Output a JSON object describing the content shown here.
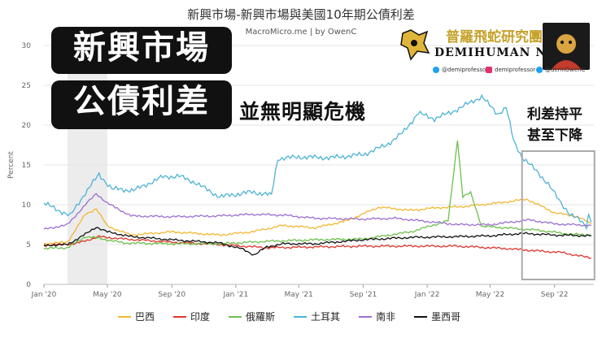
{
  "title": "新興市場-新興市場與美國10年期公債利差",
  "subtitle": "MacroMicro.me | by OwenC",
  "overlay": {
    "line1": "新興市場",
    "line2": "公債利差",
    "line3": "並無明顯危機",
    "note1": "利差持平",
    "note2": "甚至下降"
  },
  "logo": {
    "cn": "普羅飛蛇研究團",
    "en": "DEMIHUMAN NFT",
    "social1": "@demiprofessor",
    "social2": "demiprofessor",
    "social3": "@demiOwenC"
  },
  "colors": {
    "巴西": "#f2b731",
    "印度": "#e0342b",
    "俄羅斯": "#6cc04a",
    "土耳其": "#4db3d6",
    "南非": "#9b6fd1",
    "墨西哥": "#111111"
  },
  "chart_data": {
    "type": "line",
    "ylabel": "Percent",
    "ylim": [
      0,
      30
    ],
    "yticks": [
      0,
      5,
      10,
      15,
      20,
      25,
      30
    ],
    "xlim": [
      "2020-01-01",
      "2022-11-15"
    ],
    "xticks": [
      "Jan '20",
      "May '20",
      "Sep '20",
      "Jan '21",
      "May '21",
      "Sep '21",
      "Jan '22",
      "May '22",
      "Sep '22"
    ],
    "shaded_period": [
      "2020-02-15",
      "2020-05-01"
    ],
    "highlight_box": [
      "2022-07-01",
      "2022-11-10"
    ],
    "series": [
      {
        "name": "巴西",
        "color": "#f2b731",
        "points": [
          [
            "2020-01-01",
            5.1
          ],
          [
            "2020-02-15",
            5.3
          ],
          [
            "2020-03-20",
            8.8
          ],
          [
            "2020-04-10",
            9.5
          ],
          [
            "2020-05-01",
            7.3
          ],
          [
            "2020-06-15",
            6.2
          ],
          [
            "2020-09-01",
            6.6
          ],
          [
            "2020-12-01",
            6.2
          ],
          [
            "2021-02-01",
            6.6
          ],
          [
            "2021-04-01",
            7.4
          ],
          [
            "2021-06-01",
            7.1
          ],
          [
            "2021-08-01",
            8.0
          ],
          [
            "2021-10-01",
            9.7
          ],
          [
            "2021-12-01",
            9.3
          ],
          [
            "2022-01-15",
            9.6
          ],
          [
            "2022-03-15",
            9.8
          ],
          [
            "2022-05-15",
            10.2
          ],
          [
            "2022-07-10",
            10.7
          ],
          [
            "2022-08-01",
            10.0
          ],
          [
            "2022-09-01",
            9.0
          ],
          [
            "2022-10-15",
            8.5
          ],
          [
            "2022-11-10",
            7.6
          ]
        ]
      },
      {
        "name": "印度",
        "color": "#e0342b",
        "points": [
          [
            "2020-01-01",
            4.9
          ],
          [
            "2020-03-01",
            5.1
          ],
          [
            "2020-04-15",
            6.0
          ],
          [
            "2020-06-01",
            5.7
          ],
          [
            "2020-09-01",
            5.3
          ],
          [
            "2020-12-01",
            5.0
          ],
          [
            "2021-03-01",
            4.6
          ],
          [
            "2021-06-01",
            4.7
          ],
          [
            "2021-09-01",
            4.8
          ],
          [
            "2021-12-01",
            4.8
          ],
          [
            "2022-03-01",
            4.8
          ],
          [
            "2022-06-01",
            4.5
          ],
          [
            "2022-08-01",
            4.2
          ],
          [
            "2022-09-15",
            4.0
          ],
          [
            "2022-11-10",
            3.3
          ]
        ]
      },
      {
        "name": "俄羅斯",
        "color": "#6cc04a",
        "points": [
          [
            "2020-01-01",
            4.5
          ],
          [
            "2020-02-15",
            4.6
          ],
          [
            "2020-03-20",
            6.0
          ],
          [
            "2020-04-15",
            5.8
          ],
          [
            "2020-06-01",
            5.2
          ],
          [
            "2020-09-01",
            5.1
          ],
          [
            "2020-12-01",
            5.1
          ],
          [
            "2021-03-01",
            5.4
          ],
          [
            "2021-06-01",
            5.6
          ],
          [
            "2021-09-01",
            5.7
          ],
          [
            "2021-12-01",
            6.6
          ],
          [
            "2022-02-10",
            8.0
          ],
          [
            "2022-02-28",
            18.2
          ],
          [
            "2022-03-10",
            11.0
          ],
          [
            "2022-03-25",
            11.5
          ],
          [
            "2022-04-15",
            7.3
          ],
          [
            "2022-06-01",
            7.1
          ],
          [
            "2022-08-01",
            6.8
          ],
          [
            "2022-10-01",
            6.3
          ],
          [
            "2022-11-10",
            6.2
          ]
        ]
      },
      {
        "name": "土耳其",
        "color": "#4db3d6",
        "points": [
          [
            "2020-01-01",
            10.2
          ],
          [
            "2020-01-20",
            9.6
          ],
          [
            "2020-02-20",
            8.6
          ],
          [
            "2020-03-20",
            11.5
          ],
          [
            "2020-04-15",
            13.8
          ],
          [
            "2020-05-10",
            12.0
          ],
          [
            "2020-06-20",
            11.8
          ],
          [
            "2020-08-15",
            13.5
          ],
          [
            "2020-09-15",
            13.6
          ],
          [
            "2020-10-15",
            12.8
          ],
          [
            "2020-12-01",
            11.0
          ],
          [
            "2021-02-01",
            11.6
          ],
          [
            "2021-03-10",
            11.2
          ],
          [
            "2021-03-22",
            15.8
          ],
          [
            "2021-05-01",
            16.0
          ],
          [
            "2021-07-01",
            15.9
          ],
          [
            "2021-09-01",
            16.3
          ],
          [
            "2021-10-15",
            17.5
          ],
          [
            "2021-11-15",
            19.0
          ],
          [
            "2021-12-15",
            21.5
          ],
          [
            "2022-01-15",
            20.8
          ],
          [
            "2022-02-15",
            21.6
          ],
          [
            "2022-03-15",
            22.5
          ],
          [
            "2022-04-15",
            23.6
          ],
          [
            "2022-05-15",
            21.4
          ],
          [
            "2022-06-01",
            22.2
          ],
          [
            "2022-06-15",
            18.0
          ],
          [
            "2022-07-01",
            16.0
          ],
          [
            "2022-08-01",
            14.0
          ],
          [
            "2022-08-20",
            12.6
          ],
          [
            "2022-09-10",
            10.5
          ],
          [
            "2022-10-01",
            8.8
          ],
          [
            "2022-10-20",
            8.0
          ],
          [
            "2022-11-01",
            7.3
          ],
          [
            "2022-11-05",
            9.0
          ],
          [
            "2022-11-10",
            7.8
          ]
        ]
      },
      {
        "name": "南非",
        "color": "#9b6fd1",
        "points": [
          [
            "2020-01-01",
            6.9
          ],
          [
            "2020-02-15",
            7.5
          ],
          [
            "2020-03-20",
            10.0
          ],
          [
            "2020-04-10",
            11.4
          ],
          [
            "2020-05-01",
            10.2
          ],
          [
            "2020-06-15",
            8.6
          ],
          [
            "2020-09-01",
            8.5
          ],
          [
            "2020-12-01",
            8.6
          ],
          [
            "2021-02-01",
            8.8
          ],
          [
            "2021-04-01",
            8.7
          ],
          [
            "2021-06-01",
            8.3
          ],
          [
            "2021-09-01",
            8.2
          ],
          [
            "2021-11-01",
            8.3
          ],
          [
            "2022-01-01",
            7.9
          ],
          [
            "2022-03-01",
            7.5
          ],
          [
            "2022-05-01",
            7.5
          ],
          [
            "2022-07-15",
            8.1
          ],
          [
            "2022-09-01",
            7.6
          ],
          [
            "2022-11-10",
            7.4
          ]
        ]
      },
      {
        "name": "墨西哥",
        "color": "#111111",
        "points": [
          [
            "2020-01-01",
            4.9
          ],
          [
            "2020-02-15",
            5.0
          ],
          [
            "2020-03-20",
            6.3
          ],
          [
            "2020-04-10",
            7.2
          ],
          [
            "2020-05-01",
            6.6
          ],
          [
            "2020-06-15",
            6.0
          ],
          [
            "2020-09-01",
            5.6
          ],
          [
            "2020-12-01",
            5.2
          ],
          [
            "2021-01-15",
            4.4
          ],
          [
            "2021-02-05",
            3.7
          ],
          [
            "2021-03-01",
            4.7
          ],
          [
            "2021-04-01",
            5.1
          ],
          [
            "2021-06-01",
            5.1
          ],
          [
            "2021-09-01",
            5.6
          ],
          [
            "2021-12-01",
            5.9
          ],
          [
            "2022-03-01",
            6.0
          ],
          [
            "2022-05-01",
            6.1
          ],
          [
            "2022-07-01",
            6.4
          ],
          [
            "2022-09-01",
            6.2
          ],
          [
            "2022-11-10",
            6.1
          ]
        ]
      }
    ]
  }
}
